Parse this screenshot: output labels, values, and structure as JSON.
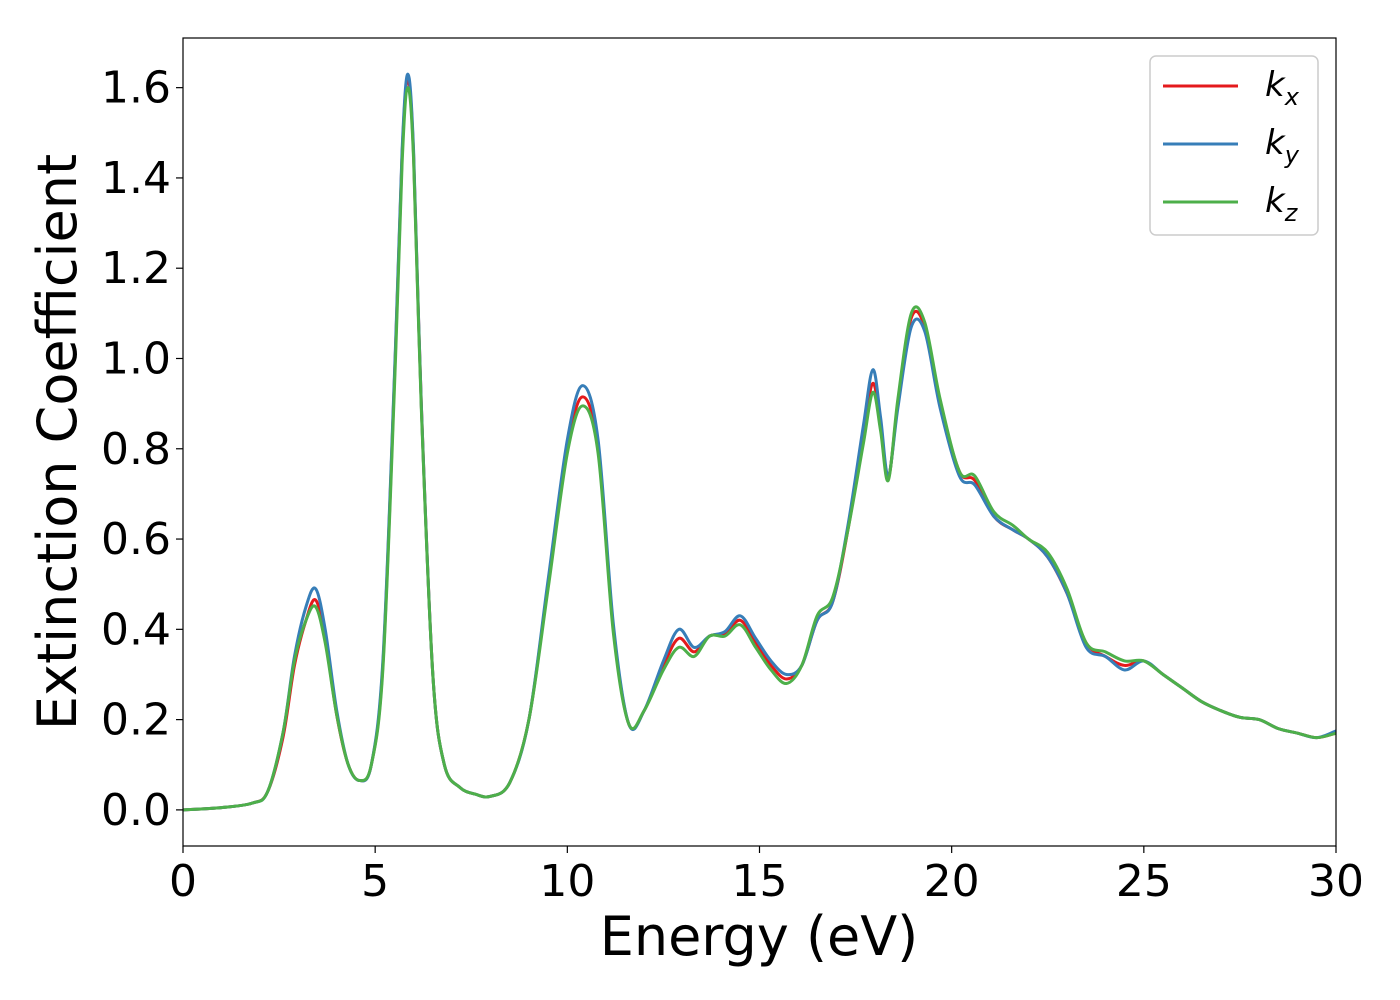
{
  "chart_data": {
    "type": "line",
    "title": "",
    "xlabel": "Energy (eV)",
    "ylabel": "Extinction Coefficient",
    "xlim": [
      0,
      30
    ],
    "ylim": [
      -0.08,
      1.71
    ],
    "xticks": [
      0,
      5,
      10,
      15,
      20,
      25,
      30
    ],
    "xtick_labels": [
      "0",
      "5",
      "10",
      "15",
      "20",
      "25",
      "30"
    ],
    "yticks": [
      0.0,
      0.2,
      0.4,
      0.6,
      0.8,
      1.0,
      1.2,
      1.4,
      1.6
    ],
    "ytick_labels": [
      "0.0",
      "0.2",
      "0.4",
      "0.6",
      "0.8",
      "1.0",
      "1.2",
      "1.4",
      "1.6"
    ],
    "grid": false,
    "legend_position": "top-right",
    "series": [
      {
        "name": "k",
        "subscript": "x",
        "color": "#e41a1c",
        "x": [
          0,
          1,
          1.8,
          2.2,
          2.6,
          2.9,
          3.2,
          3.45,
          3.7,
          4.0,
          4.3,
          4.6,
          4.9,
          5.2,
          5.5,
          5.7,
          5.85,
          6.0,
          6.2,
          6.5,
          6.8,
          7.2,
          7.6,
          8.0,
          8.5,
          9.0,
          9.5,
          10.0,
          10.4,
          10.8,
          11.2,
          11.6,
          12.0,
          12.5,
          12.9,
          13.3,
          13.7,
          14.1,
          14.5,
          14.9,
          15.3,
          15.7,
          16.1,
          16.5,
          16.9,
          17.3,
          17.7,
          17.95,
          18.15,
          18.35,
          18.6,
          18.95,
          19.3,
          19.7,
          20.2,
          20.6,
          21.1,
          21.6,
          22.0,
          22.5,
          23.0,
          23.5,
          24.0,
          24.5,
          25.0,
          25.5,
          26.0,
          26.5,
          27.0,
          27.5,
          28.0,
          28.5,
          29.0,
          29.5,
          30.0
        ],
        "y": [
          0.0,
          0.005,
          0.015,
          0.04,
          0.16,
          0.32,
          0.42,
          0.465,
          0.38,
          0.21,
          0.1,
          0.065,
          0.1,
          0.32,
          0.95,
          1.45,
          1.62,
          1.45,
          0.9,
          0.3,
          0.1,
          0.05,
          0.035,
          0.03,
          0.06,
          0.2,
          0.5,
          0.8,
          0.915,
          0.8,
          0.4,
          0.19,
          0.22,
          0.32,
          0.38,
          0.35,
          0.385,
          0.39,
          0.42,
          0.37,
          0.32,
          0.29,
          0.32,
          0.42,
          0.46,
          0.62,
          0.83,
          0.945,
          0.85,
          0.735,
          0.9,
          1.09,
          1.07,
          0.9,
          0.75,
          0.73,
          0.65,
          0.62,
          0.6,
          0.56,
          0.48,
          0.37,
          0.34,
          0.32,
          0.33,
          0.3,
          0.27,
          0.24,
          0.22,
          0.205,
          0.2,
          0.18,
          0.17,
          0.16,
          0.17
        ]
      },
      {
        "name": "k",
        "subscript": "y",
        "color": "#377eb8",
        "x": [
          0,
          1,
          1.8,
          2.2,
          2.6,
          2.9,
          3.2,
          3.45,
          3.7,
          4.0,
          4.3,
          4.6,
          4.9,
          5.2,
          5.5,
          5.7,
          5.85,
          6.0,
          6.2,
          6.5,
          6.8,
          7.2,
          7.6,
          8.0,
          8.5,
          9.0,
          9.5,
          10.0,
          10.4,
          10.8,
          11.2,
          11.6,
          12.0,
          12.5,
          12.9,
          13.3,
          13.7,
          14.1,
          14.5,
          14.9,
          15.3,
          15.7,
          16.1,
          16.5,
          16.9,
          17.3,
          17.7,
          17.95,
          18.15,
          18.35,
          18.6,
          18.95,
          19.3,
          19.7,
          20.2,
          20.6,
          21.1,
          21.6,
          22.0,
          22.5,
          23.0,
          23.5,
          24.0,
          24.5,
          25.0,
          25.5,
          26.0,
          26.5,
          27.0,
          27.5,
          28.0,
          28.5,
          29.0,
          29.5,
          30.0
        ],
        "y": [
          0.0,
          0.005,
          0.015,
          0.04,
          0.17,
          0.34,
          0.45,
          0.49,
          0.4,
          0.22,
          0.1,
          0.065,
          0.1,
          0.33,
          0.96,
          1.46,
          1.63,
          1.46,
          0.9,
          0.3,
          0.1,
          0.05,
          0.035,
          0.03,
          0.06,
          0.2,
          0.51,
          0.82,
          0.94,
          0.82,
          0.41,
          0.19,
          0.22,
          0.33,
          0.4,
          0.36,
          0.385,
          0.395,
          0.43,
          0.38,
          0.33,
          0.3,
          0.32,
          0.42,
          0.46,
          0.63,
          0.85,
          0.975,
          0.87,
          0.74,
          0.89,
          1.07,
          1.06,
          0.89,
          0.74,
          0.72,
          0.65,
          0.62,
          0.6,
          0.56,
          0.48,
          0.36,
          0.34,
          0.31,
          0.33,
          0.3,
          0.27,
          0.24,
          0.22,
          0.205,
          0.2,
          0.18,
          0.17,
          0.16,
          0.175
        ]
      },
      {
        "name": "k",
        "subscript": "z",
        "color": "#4daf4a",
        "x": [
          0,
          1,
          1.8,
          2.2,
          2.6,
          2.9,
          3.2,
          3.45,
          3.7,
          4.0,
          4.3,
          4.6,
          4.9,
          5.2,
          5.5,
          5.7,
          5.85,
          6.0,
          6.2,
          6.5,
          6.8,
          7.2,
          7.6,
          8.0,
          8.5,
          9.0,
          9.5,
          10.0,
          10.4,
          10.8,
          11.2,
          11.6,
          12.0,
          12.5,
          12.9,
          13.3,
          13.7,
          14.1,
          14.5,
          14.9,
          15.3,
          15.7,
          16.1,
          16.5,
          16.9,
          17.3,
          17.7,
          17.95,
          18.15,
          18.35,
          18.6,
          18.95,
          19.3,
          19.7,
          20.2,
          20.6,
          21.1,
          21.6,
          22.0,
          22.5,
          23.0,
          23.5,
          24.0,
          24.5,
          25.0,
          25.5,
          26.0,
          26.5,
          27.0,
          27.5,
          28.0,
          28.5,
          29.0,
          29.5,
          30.0
        ],
        "y": [
          0.0,
          0.005,
          0.015,
          0.04,
          0.17,
          0.33,
          0.42,
          0.45,
          0.37,
          0.21,
          0.1,
          0.065,
          0.1,
          0.31,
          0.93,
          1.43,
          1.6,
          1.44,
          0.89,
          0.3,
          0.1,
          0.05,
          0.035,
          0.03,
          0.06,
          0.2,
          0.49,
          0.79,
          0.895,
          0.79,
          0.39,
          0.19,
          0.22,
          0.31,
          0.36,
          0.34,
          0.385,
          0.385,
          0.41,
          0.36,
          0.31,
          0.28,
          0.32,
          0.43,
          0.47,
          0.62,
          0.81,
          0.925,
          0.84,
          0.73,
          0.91,
          1.1,
          1.08,
          0.91,
          0.75,
          0.74,
          0.66,
          0.63,
          0.6,
          0.57,
          0.49,
          0.37,
          0.35,
          0.33,
          0.33,
          0.3,
          0.27,
          0.24,
          0.22,
          0.205,
          0.2,
          0.18,
          0.17,
          0.16,
          0.17
        ]
      }
    ]
  }
}
